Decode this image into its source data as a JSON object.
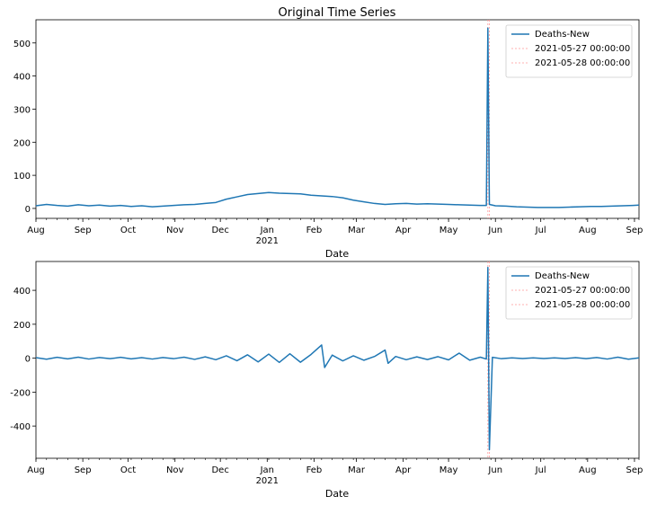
{
  "chart_data": [
    {
      "type": "line",
      "title": "Original Time Series",
      "xlabel": "Date",
      "ylabel": "",
      "x_range": [
        "2020-08-01",
        "2021-09-04"
      ],
      "ylim": [
        -30,
        570
      ],
      "y_ticks": [
        0,
        100,
        200,
        300,
        400,
        500
      ],
      "x_ticks": [
        {
          "date": "2020-08-01",
          "label": "Aug"
        },
        {
          "date": "2020-09-01",
          "label": "Sep"
        },
        {
          "date": "2020-10-01",
          "label": "Oct"
        },
        {
          "date": "2020-11-01",
          "label": "Nov"
        },
        {
          "date": "2020-12-01",
          "label": "Dec"
        },
        {
          "date": "2021-01-01",
          "label": "Jan",
          "sublabel": "2021"
        },
        {
          "date": "2021-02-01",
          "label": "Feb"
        },
        {
          "date": "2021-03-01",
          "label": "Mar"
        },
        {
          "date": "2021-04-01",
          "label": "Apr"
        },
        {
          "date": "2021-05-01",
          "label": "May"
        },
        {
          "date": "2021-06-01",
          "label": "Jun"
        },
        {
          "date": "2021-07-01",
          "label": "Jul"
        },
        {
          "date": "2021-08-01",
          "label": "Aug"
        },
        {
          "date": "2021-09-01",
          "label": "Sep"
        }
      ],
      "series": [
        {
          "name": "Deaths-New",
          "color": "#1f77b4",
          "points": [
            [
              "2020-08-01",
              8
            ],
            [
              "2020-08-08",
              12
            ],
            [
              "2020-08-15",
              9
            ],
            [
              "2020-08-22",
              7
            ],
            [
              "2020-08-29",
              11
            ],
            [
              "2020-09-05",
              8
            ],
            [
              "2020-09-12",
              10
            ],
            [
              "2020-09-19",
              7
            ],
            [
              "2020-09-26",
              9
            ],
            [
              "2020-10-03",
              6
            ],
            [
              "2020-10-10",
              8
            ],
            [
              "2020-10-17",
              5
            ],
            [
              "2020-10-24",
              7
            ],
            [
              "2020-10-31",
              9
            ],
            [
              "2020-11-07",
              11
            ],
            [
              "2020-11-14",
              12
            ],
            [
              "2020-11-21",
              15
            ],
            [
              "2020-11-28",
              18
            ],
            [
              "2020-12-05",
              28
            ],
            [
              "2020-12-12",
              35
            ],
            [
              "2020-12-19",
              42
            ],
            [
              "2020-12-26",
              45
            ],
            [
              "2021-01-02",
              48
            ],
            [
              "2021-01-09",
              46
            ],
            [
              "2021-01-16",
              45
            ],
            [
              "2021-01-23",
              44
            ],
            [
              "2021-01-30",
              40
            ],
            [
              "2021-02-06",
              38
            ],
            [
              "2021-02-13",
              36
            ],
            [
              "2021-02-20",
              32
            ],
            [
              "2021-02-27",
              25
            ],
            [
              "2021-03-06",
              20
            ],
            [
              "2021-03-13",
              15
            ],
            [
              "2021-03-20",
              12
            ],
            [
              "2021-03-27",
              14
            ],
            [
              "2021-04-03",
              15
            ],
            [
              "2021-04-10",
              13
            ],
            [
              "2021-04-17",
              14
            ],
            [
              "2021-04-24",
              13
            ],
            [
              "2021-05-01",
              12
            ],
            [
              "2021-05-08",
              11
            ],
            [
              "2021-05-15",
              10
            ],
            [
              "2021-05-22",
              9
            ],
            [
              "2021-05-26",
              9
            ],
            [
              "2021-05-27",
              545
            ],
            [
              "2021-05-28",
              12
            ],
            [
              "2021-06-01",
              8
            ],
            [
              "2021-06-08",
              7
            ],
            [
              "2021-06-15",
              5
            ],
            [
              "2021-06-22",
              4
            ],
            [
              "2021-06-29",
              3
            ],
            [
              "2021-07-06",
              3
            ],
            [
              "2021-07-13",
              3
            ],
            [
              "2021-07-20",
              4
            ],
            [
              "2021-07-27",
              5
            ],
            [
              "2021-08-03",
              6
            ],
            [
              "2021-08-10",
              6
            ],
            [
              "2021-08-17",
              7
            ],
            [
              "2021-08-24",
              8
            ],
            [
              "2021-08-31",
              9
            ],
            [
              "2021-09-04",
              10
            ]
          ]
        }
      ],
      "vlines": [
        {
          "name": "2021-05-27 00:00:00",
          "date": "2021-05-27",
          "color": "#ff9999"
        },
        {
          "name": "2021-05-28 00:00:00",
          "date": "2021-05-28",
          "color": "#ff9999"
        }
      ],
      "legend": "top-right",
      "grid": false
    },
    {
      "type": "line",
      "title": "",
      "xlabel": "Date",
      "ylabel": "",
      "x_range": [
        "2020-08-01",
        "2021-09-04"
      ],
      "ylim": [
        -590,
        570
      ],
      "y_ticks": [
        -400,
        -200,
        0,
        200,
        400
      ],
      "x_ticks": [
        {
          "date": "2020-08-01",
          "label": "Aug"
        },
        {
          "date": "2020-09-01",
          "label": "Sep"
        },
        {
          "date": "2020-10-01",
          "label": "Oct"
        },
        {
          "date": "2020-11-01",
          "label": "Nov"
        },
        {
          "date": "2020-12-01",
          "label": "Dec"
        },
        {
          "date": "2021-01-01",
          "label": "Jan",
          "sublabel": "2021"
        },
        {
          "date": "2021-02-01",
          "label": "Feb"
        },
        {
          "date": "2021-03-01",
          "label": "Mar"
        },
        {
          "date": "2021-04-01",
          "label": "Apr"
        },
        {
          "date": "2021-05-01",
          "label": "May"
        },
        {
          "date": "2021-06-01",
          "label": "Jun"
        },
        {
          "date": "2021-07-01",
          "label": "Jul"
        },
        {
          "date": "2021-08-01",
          "label": "Aug"
        },
        {
          "date": "2021-09-01",
          "label": "Sep"
        }
      ],
      "series": [
        {
          "name": "Deaths-New",
          "color": "#1f77b4",
          "points": [
            [
              "2020-08-01",
              3
            ],
            [
              "2020-08-08",
              -6
            ],
            [
              "2020-08-15",
              5
            ],
            [
              "2020-08-22",
              -4
            ],
            [
              "2020-08-29",
              6
            ],
            [
              "2020-09-05",
              -5
            ],
            [
              "2020-09-12",
              4
            ],
            [
              "2020-09-19",
              -3
            ],
            [
              "2020-09-26",
              5
            ],
            [
              "2020-10-03",
              -4
            ],
            [
              "2020-10-10",
              3
            ],
            [
              "2020-10-17",
              -5
            ],
            [
              "2020-10-24",
              4
            ],
            [
              "2020-10-31",
              -3
            ],
            [
              "2020-11-07",
              6
            ],
            [
              "2020-11-14",
              -7
            ],
            [
              "2020-11-21",
              8
            ],
            [
              "2020-11-28",
              -9
            ],
            [
              "2020-12-05",
              14
            ],
            [
              "2020-12-12",
              -15
            ],
            [
              "2020-12-19",
              20
            ],
            [
              "2020-12-26",
              -22
            ],
            [
              "2021-01-02",
              24
            ],
            [
              "2021-01-09",
              -25
            ],
            [
              "2021-01-16",
              26
            ],
            [
              "2021-01-23",
              -24
            ],
            [
              "2021-01-30",
              22
            ],
            [
              "2021-02-06",
              78
            ],
            [
              "2021-02-08",
              -55
            ],
            [
              "2021-02-13",
              18
            ],
            [
              "2021-02-20",
              -16
            ],
            [
              "2021-02-27",
              14
            ],
            [
              "2021-03-06",
              -12
            ],
            [
              "2021-03-13",
              10
            ],
            [
              "2021-03-20",
              48
            ],
            [
              "2021-03-22",
              -30
            ],
            [
              "2021-03-27",
              10
            ],
            [
              "2021-04-03",
              -9
            ],
            [
              "2021-04-10",
              8
            ],
            [
              "2021-04-17",
              -8
            ],
            [
              "2021-04-24",
              9
            ],
            [
              "2021-05-01",
              -10
            ],
            [
              "2021-05-08",
              30
            ],
            [
              "2021-05-15",
              -12
            ],
            [
              "2021-05-22",
              6
            ],
            [
              "2021-05-26",
              -5
            ],
            [
              "2021-05-27",
              535
            ],
            [
              "2021-05-28",
              -540
            ],
            [
              "2021-05-30",
              5
            ],
            [
              "2021-06-05",
              -3
            ],
            [
              "2021-06-12",
              2
            ],
            [
              "2021-06-19",
              -2
            ],
            [
              "2021-06-26",
              2
            ],
            [
              "2021-07-03",
              -2
            ],
            [
              "2021-07-10",
              2
            ],
            [
              "2021-07-17",
              -2
            ],
            [
              "2021-07-24",
              3
            ],
            [
              "2021-07-31",
              -3
            ],
            [
              "2021-08-07",
              4
            ],
            [
              "2021-08-14",
              -5
            ],
            [
              "2021-08-21",
              6
            ],
            [
              "2021-08-28",
              -6
            ],
            [
              "2021-09-04",
              2
            ]
          ]
        }
      ],
      "vlines": [
        {
          "name": "2021-05-27 00:00:00",
          "date": "2021-05-27",
          "color": "#ff9999"
        },
        {
          "name": "2021-05-28 00:00:00",
          "date": "2021-05-28",
          "color": "#ff9999"
        }
      ],
      "legend": "top-right",
      "grid": false
    }
  ]
}
